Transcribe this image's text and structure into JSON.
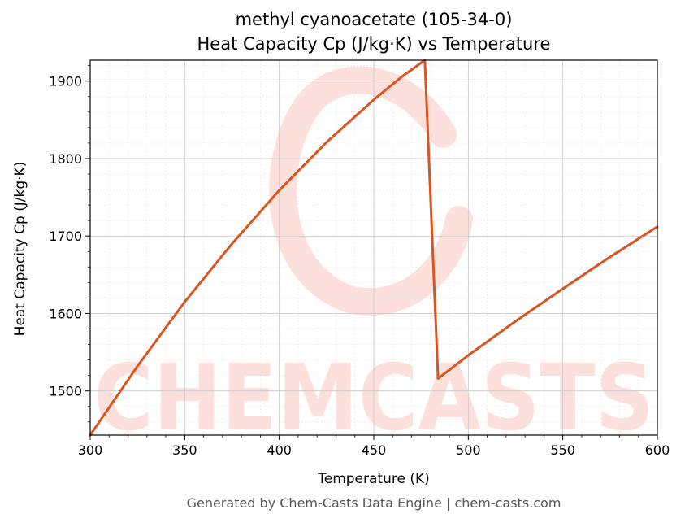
{
  "chart_data": {
    "type": "line",
    "title_line1": "methyl cyanoacetate (105-34-0)",
    "title_line2": "Heat Capacity Cp (J/kg·K) vs Temperature",
    "xlabel": "Temperature (K)",
    "ylabel": "Heat Capacity Cp (J/kg·K)",
    "xlim": [
      300,
      600
    ],
    "ylim": [
      1443,
      1927
    ],
    "x_ticks": [
      300,
      350,
      400,
      450,
      500,
      550,
      600
    ],
    "y_ticks": [
      1500,
      1600,
      1700,
      1800,
      1900
    ],
    "grid": true,
    "line_color": "#d9541e",
    "series": [
      {
        "x": [
          300,
          325,
          350,
          375,
          400,
          425,
          450,
          465,
          477,
          484,
          500,
          525,
          550,
          575,
          600
        ],
        "y": [
          1443,
          1532,
          1615,
          1690,
          1759,
          1821,
          1876,
          1906,
          1927,
          1516,
          1546,
          1590,
          1632,
          1673,
          1712
        ]
      }
    ]
  },
  "watermark": {
    "text": "CHEMCASTS",
    "color": "#fde0db"
  },
  "footer": "Generated by Chem-Casts Data Engine | chem-casts.com"
}
